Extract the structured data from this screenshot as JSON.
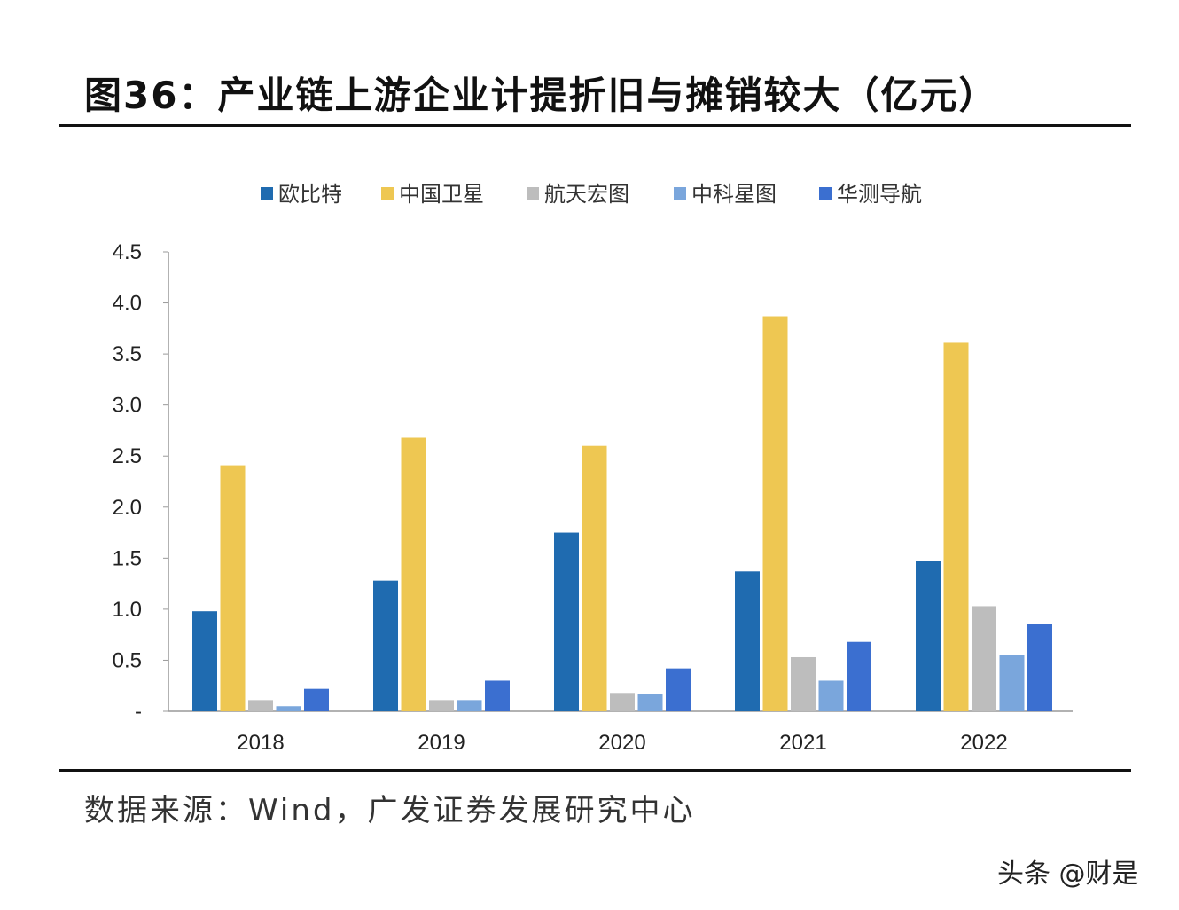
{
  "title": "图36：产业链上游企业计提折旧与摊销较大（亿元）",
  "source": "数据来源：Wind，广发证券发展研究中心",
  "watermark": "头条 @财是",
  "chart_data": {
    "type": "bar",
    "title": "产业链上游企业计提折旧与摊销较大（亿元）",
    "categories": [
      "2018",
      "2019",
      "2020",
      "2021",
      "2022"
    ],
    "series": [
      {
        "name": "欧比特",
        "color": "#1f6bb0",
        "values": [
          0.98,
          1.28,
          1.75,
          1.37,
          1.47
        ]
      },
      {
        "name": "中国卫星",
        "color": "#eec752",
        "values": [
          2.41,
          2.68,
          2.6,
          3.87,
          3.61
        ]
      },
      {
        "name": "航天宏图",
        "color": "#bdbdbd",
        "values": [
          0.11,
          0.11,
          0.18,
          0.53,
          1.03
        ]
      },
      {
        "name": "中科星图",
        "color": "#7aa6dc",
        "values": [
          0.05,
          0.11,
          0.17,
          0.3,
          0.55
        ]
      },
      {
        "name": "华测导航",
        "color": "#3b6fd0",
        "values": [
          0.22,
          0.3,
          0.42,
          0.68,
          0.86
        ]
      }
    ],
    "yticks": [
      "-",
      "0.5",
      "1.0",
      "1.5",
      "2.0",
      "2.5",
      "3.0",
      "3.5",
      "4.0",
      "4.5"
    ],
    "ylim": [
      0,
      4.5
    ],
    "xlabel": "",
    "ylabel": "",
    "legend": "top-center",
    "grid": false
  }
}
